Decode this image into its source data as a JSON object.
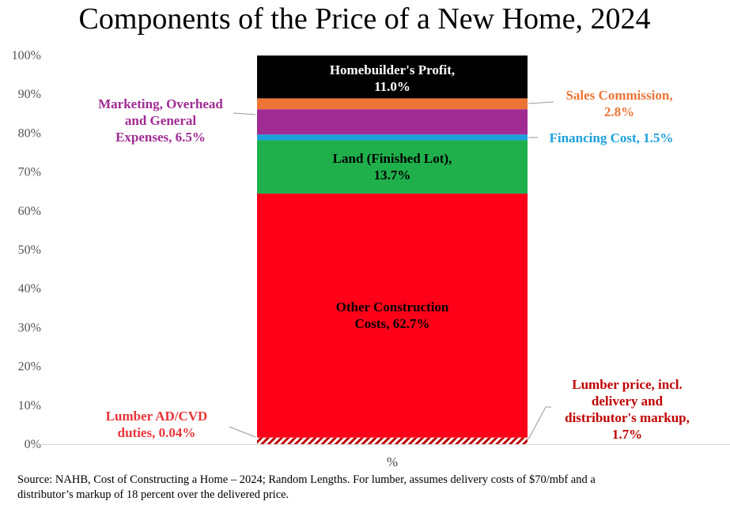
{
  "chart_data": {
    "type": "bar",
    "stacked": true,
    "title": "Components of the Price of a New Home, 2024",
    "xlabel": "",
    "categories": [
      "%"
    ],
    "ylim": [
      0,
      100
    ],
    "yticks": [
      "0%",
      "10%",
      "20%",
      "30%",
      "40%",
      "50%",
      "60%",
      "70%",
      "80%",
      "90%",
      "100%"
    ],
    "grid": false,
    "series": [
      {
        "name": "Lumber price, incl. delivery and distributor's markup",
        "value": 1.7,
        "label": [
          "Lumber price, incl.",
          "delivery and",
          "distributor's markup,",
          "1.7%"
        ],
        "color": "#c00000",
        "pattern": "hatch",
        "label_color": "#c00000"
      },
      {
        "name": "Lumber AD/CVD duties",
        "value": 0.04,
        "label": [
          "Lumber AD/CVD",
          "duties, 0.04%"
        ],
        "color": "#ff2020",
        "label_color": "#e8343a"
      },
      {
        "name": "Other Construction Costs",
        "value": 62.7,
        "label": [
          "Other Construction",
          "Costs, 62.7%"
        ],
        "color": "#ff0019",
        "label_color": "#000000"
      },
      {
        "name": "Land (Finished Lot)",
        "value": 13.7,
        "label": [
          "Land (Finished Lot),",
          "13.7%"
        ],
        "color": "#1fb04c",
        "label_color": "#000000"
      },
      {
        "name": "Financing Cost",
        "value": 1.5,
        "label": [
          "Financing Cost, 1.5%"
        ],
        "color": "#1ba0dc",
        "label_color": "#1ba0dc"
      },
      {
        "name": "Marketing, Overhead and General Expenses",
        "value": 6.5,
        "label": [
          "Marketing, Overhead",
          "and General",
          "Expenses, 6.5%"
        ],
        "color": "#a02b93",
        "label_color": "#a02b93"
      },
      {
        "name": "Sales Commission",
        "value": 2.8,
        "label": [
          "Sales Commission,",
          "2.8%"
        ],
        "color": "#ec7535",
        "label_color": "#ec7535"
      },
      {
        "name": "Homebuilder's Profit",
        "value": 11.0,
        "label": [
          "Homebuilder's Profit,",
          "11.0%"
        ],
        "color": "#000000",
        "label_color": "#ffffff"
      }
    ],
    "source": [
      "Source: NAHB, Cost of Constructing a Home – 2024; Random Lengths.  For lumber, assumes delivery costs of $70/mbf and a",
      "distributor’s markup of 18 percent over the delivered price."
    ]
  }
}
